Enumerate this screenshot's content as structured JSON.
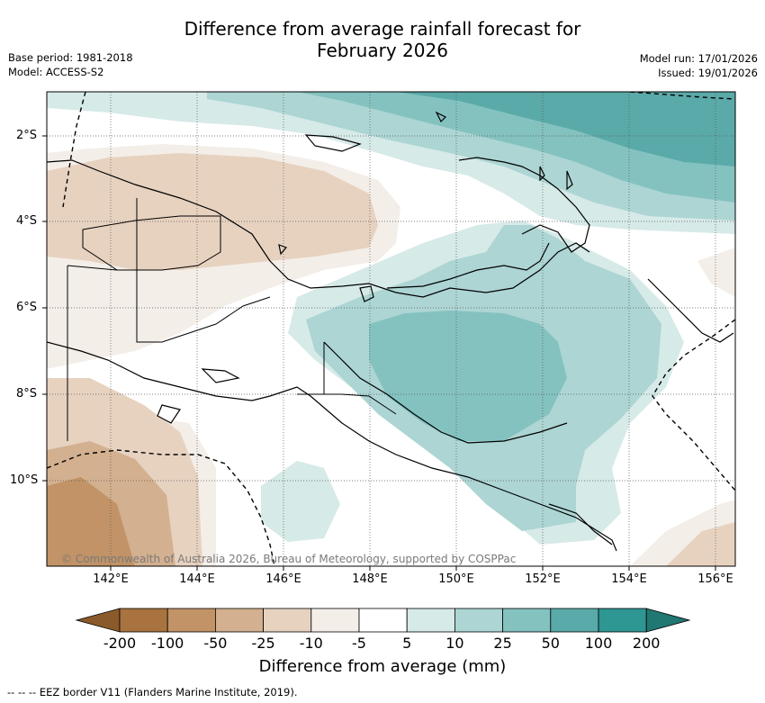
{
  "title_line1": "Difference from average rainfall forecast for",
  "title_line2": "February 2026",
  "meta_left": {
    "base_period": "Base period: 1981-2018",
    "model": "Model: ACCESS-S2"
  },
  "meta_right": {
    "model_run": "Model run: 17/01/2026",
    "issued": "Issued: 19/01/2026"
  },
  "map": {
    "lat_labels": [
      "2°S",
      "4°S",
      "6°S",
      "8°S",
      "10°S"
    ],
    "lon_labels": [
      "142°E",
      "144°E",
      "146°E",
      "148°E",
      "150°E",
      "152°E",
      "154°E",
      "156°E"
    ],
    "copyright": "© Commonwealth of Australia 2026, Bureau of Meteorology, supported by COSPPac"
  },
  "colorbar": {
    "ticks": [
      "-200",
      "-100",
      "-50",
      "-25",
      "-10",
      "-5",
      "5",
      "10",
      "25",
      "50",
      "100",
      "200"
    ],
    "colors": [
      "#8b5a2b",
      "#a9733f",
      "#c19366",
      "#d3b08f",
      "#e7d2c0",
      "#f3eee8",
      "#ffffff",
      "#d6eae8",
      "#acd5d3",
      "#84c2c0",
      "#5aaaa9",
      "#2e9693",
      "#217772"
    ],
    "label": "Difference from average (mm)"
  },
  "footer": "--  --  -- EEZ border V11 (Flanders Marine Institute, 2019)."
}
